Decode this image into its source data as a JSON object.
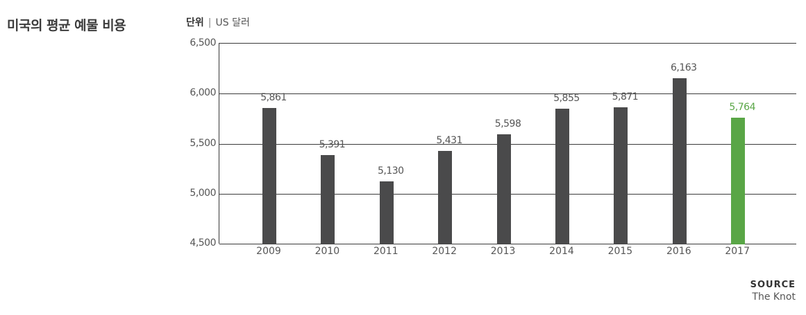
{
  "header": {
    "title": "미국의 평균 예물 비용",
    "unit_label": "단위",
    "unit_separator": "|",
    "unit_value": "US 달러"
  },
  "colors": {
    "bar": "#4a4a4b",
    "highlight": "#59a646",
    "grid": "#3a3a3a"
  },
  "source": {
    "label": "SOURCE",
    "value": "The Knot"
  },
  "chart_data": {
    "type": "bar",
    "title": "미국의 평균 예물 비용",
    "subtitle": "단위 | US 달러",
    "xlabel": "",
    "ylabel": "US 달러",
    "categories": [
      "2009",
      "2010",
      "2011",
      "2012",
      "2013",
      "2014",
      "2015",
      "2016",
      "2017"
    ],
    "values": [
      5861,
      5391,
      5130,
      5431,
      5598,
      5855,
      5871,
      6163,
      5764
    ],
    "value_labels": [
      "5,861",
      "5,391",
      "5,130",
      "5,431",
      "5,598",
      "5,855",
      "5,871",
      "6,163",
      "5,764"
    ],
    "highlight_index": 8,
    "ylim": [
      4500,
      6500
    ],
    "yticks": [
      4500,
      5000,
      5500,
      6000,
      6500
    ],
    "ytick_labels": [
      "4,500",
      "5,000",
      "5,500",
      "6,000",
      "6,500"
    ],
    "grid": true,
    "legend": null,
    "source": "The Knot"
  }
}
